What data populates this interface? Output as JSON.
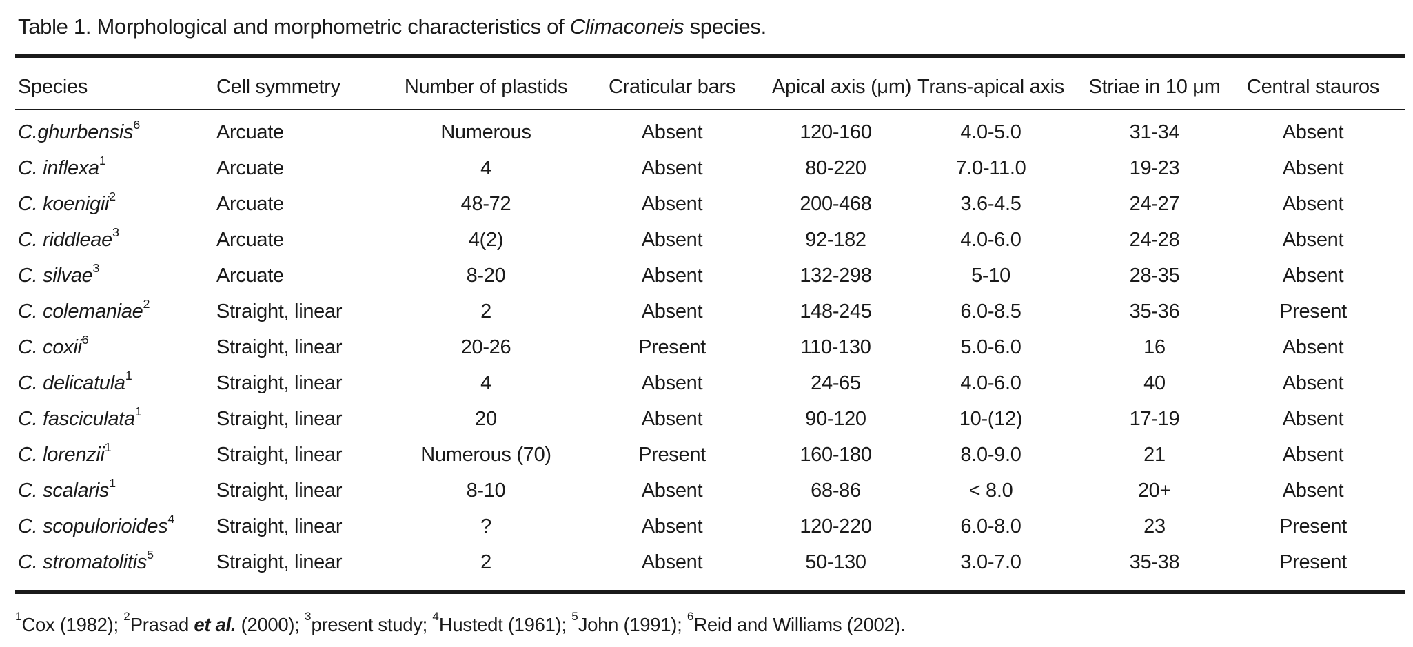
{
  "caption": {
    "segments": [
      {
        "t": "Table 1. Morphological and morphometric characteristics of "
      },
      {
        "i": "Climaconeis"
      },
      {
        "t": " species."
      }
    ]
  },
  "table": {
    "columns": [
      {
        "label": "Species",
        "align": "left"
      },
      {
        "label": "Cell symmetry",
        "align": "left"
      },
      {
        "label": "Number of plastids",
        "align": "center"
      },
      {
        "label": "Craticular bars",
        "align": "center"
      },
      {
        "label": "Apical axis (μm)",
        "align": "center"
      },
      {
        "label": "Trans-apical axis",
        "align": "center"
      },
      {
        "label": "Striae in 10 μm",
        "align": "center"
      },
      {
        "label": "Central stauros",
        "align": "center"
      }
    ],
    "rows": [
      {
        "species": "C.ghurbensis",
        "ref": "6",
        "cells": [
          "Arcuate",
          "Numerous",
          "Absent",
          "120-160",
          "4.0-5.0",
          "31-34",
          "Absent"
        ]
      },
      {
        "species": "C. inflexa",
        "ref": "1",
        "cells": [
          "Arcuate",
          "4",
          "Absent",
          "80-220",
          "7.0-11.0",
          "19-23",
          "Absent"
        ]
      },
      {
        "species": "C. koenigii",
        "ref": "2",
        "cells": [
          "Arcuate",
          "48-72",
          "Absent",
          "200-468",
          "3.6-4.5",
          "24-27",
          "Absent"
        ]
      },
      {
        "species": "C. riddleae",
        "ref": "3",
        "cells": [
          "Arcuate",
          "4(2)",
          "Absent",
          "92-182",
          "4.0-6.0",
          "24-28",
          "Absent"
        ]
      },
      {
        "species": "C. silvae",
        "ref": "3",
        "cells": [
          "Arcuate",
          "8-20",
          "Absent",
          "132-298",
          "5-10",
          "28-35",
          "Absent"
        ]
      },
      {
        "species": "C. colemaniae",
        "ref": "2",
        "cells": [
          "Straight, linear",
          "2",
          "Absent",
          "148-245",
          "6.0-8.5",
          "35-36",
          "Present"
        ]
      },
      {
        "species": "C. coxii",
        "ref": "6",
        "cells": [
          "Straight, linear",
          "20-26",
          "Present",
          "110-130",
          "5.0-6.0",
          "16",
          "Absent"
        ]
      },
      {
        "species": "C. delicatula",
        "ref": "1",
        "cells": [
          "Straight, linear",
          "4",
          "Absent",
          "24-65",
          "4.0-6.0",
          "40",
          "Absent"
        ]
      },
      {
        "species": "C. fasciculata",
        "ref": "1",
        "cells": [
          "Straight, linear",
          "20",
          "Absent",
          "90-120",
          "10-(12)",
          "17-19",
          "Absent"
        ]
      },
      {
        "species": "C. lorenzii",
        "ref": "1",
        "cells": [
          "Straight, linear",
          "Numerous (70)",
          "Present",
          "160-180",
          "8.0-9.0",
          "21",
          "Absent"
        ]
      },
      {
        "species": "C. scalaris",
        "ref": "1",
        "cells": [
          "Straight, linear",
          "8-10",
          "Absent",
          "68-86",
          "< 8.0",
          "20+",
          "Absent"
        ]
      },
      {
        "species": "C. scopulorioides",
        "ref": "4",
        "cells": [
          "Straight, linear",
          "?",
          "Absent",
          "120-220",
          "6.0-8.0",
          "23",
          "Present"
        ]
      },
      {
        "species": "C. stromatolitis",
        "ref": "5",
        "cells": [
          "Straight, linear",
          "2",
          "Absent",
          "50-130",
          "3.0-7.0",
          "35-38",
          "Present"
        ]
      }
    ]
  },
  "footnote": {
    "segments": [
      {
        "sup": "1"
      },
      {
        "t": "Cox (1982); "
      },
      {
        "sup": "2"
      },
      {
        "t": "Prasad "
      },
      {
        "i": "et al.",
        "b": true
      },
      {
        "t": " (2000); "
      },
      {
        "sup": "3"
      },
      {
        "t": "present study; "
      },
      {
        "sup": "4"
      },
      {
        "t": "Hustedt (1961); "
      },
      {
        "sup": "5"
      },
      {
        "t": "John (1991); "
      },
      {
        "sup": "6"
      },
      {
        "t": "Reid and Williams (2002)."
      }
    ]
  }
}
